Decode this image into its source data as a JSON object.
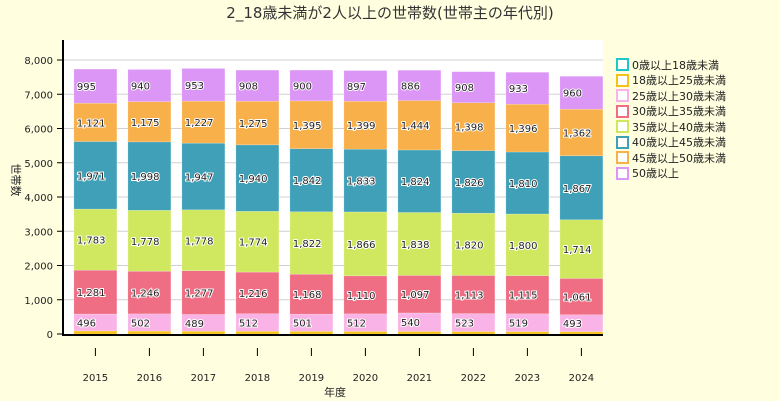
{
  "chart_data": {
    "type": "bar",
    "stacked": true,
    "title": "2_18歳未満が2人以上の世帯数(世帯主の年代別)",
    "xlabel": "年度",
    "ylabel": "世帯数",
    "ylim": [
      0,
      8000
    ],
    "yticks": [
      "0",
      "1,000",
      "2,000",
      "3,000",
      "4,000",
      "5,000",
      "6,000",
      "7,000",
      "8,000"
    ],
    "grid": true,
    "legend_position": "right",
    "categories": [
      "2015",
      "2016",
      "2017",
      "2018",
      "2019",
      "2020",
      "2021",
      "2022",
      "2023",
      "2024"
    ],
    "series": [
      {
        "name": "0歳以上18歳未満",
        "color": "#1fc8c8",
        "values": [
          0,
          0,
          0,
          0,
          0,
          0,
          0,
          0,
          0,
          0
        ],
        "labels": false
      },
      {
        "name": "18歳以上25歳未満",
        "color": "#f5c21a",
        "values": [
          88,
          85,
          82,
          80,
          78,
          76,
          74,
          72,
          70,
          68
        ],
        "labels": false
      },
      {
        "name": "25歳以上30歳未満",
        "color": "#f9b3e6",
        "values": [
          496,
          502,
          489,
          512,
          501,
          512,
          540,
          523,
          519,
          493
        ],
        "labels": true
      },
      {
        "name": "30歳以上35歳未満",
        "color": "#ef6e84",
        "values": [
          1281,
          1246,
          1277,
          1216,
          1168,
          1110,
          1097,
          1113,
          1115,
          1061
        ],
        "labels": true
      },
      {
        "name": "35歳以上40歳未満",
        "color": "#d0e860",
        "values": [
          1783,
          1778,
          1778,
          1774,
          1822,
          1866,
          1838,
          1820,
          1800,
          1714
        ],
        "labels": true
      },
      {
        "name": "40歳以上45歳未満",
        "color": "#3fa0b8",
        "values": [
          1971,
          1998,
          1947,
          1940,
          1842,
          1833,
          1824,
          1826,
          1810,
          1867
        ],
        "labels": true
      },
      {
        "name": "45歳以上50歳未満",
        "color": "#f7b04a",
        "values": [
          1121,
          1175,
          1227,
          1275,
          1395,
          1399,
          1444,
          1398,
          1396,
          1362
        ],
        "labels": true
      },
      {
        "name": "50歳以上",
        "color": "#dc96f5",
        "values": [
          995,
          940,
          953,
          908,
          900,
          897,
          886,
          908,
          933,
          960
        ],
        "labels": true
      }
    ]
  }
}
